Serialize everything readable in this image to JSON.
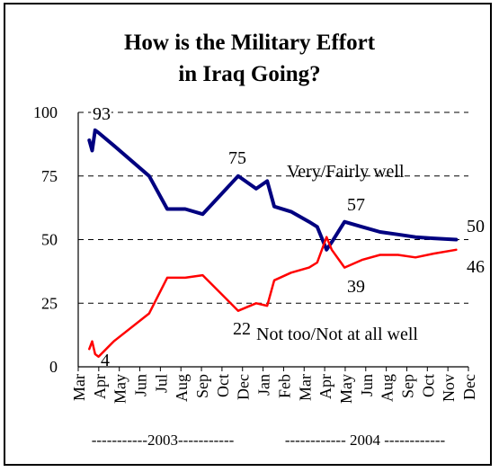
{
  "chart_data": {
    "type": "line",
    "title_lines": [
      "How is the Military Effort",
      "in Iraq Going?"
    ],
    "xlabel": "",
    "ylabel": "",
    "ylim": [
      0,
      100
    ],
    "y_ticks": [
      0,
      25,
      50,
      75,
      100
    ],
    "grid": "horizontal dashed",
    "month_ticks": [
      "Mar",
      "Apr",
      "May",
      "Jun",
      "Jul",
      "Aug",
      "Sep",
      "Oct",
      "Dec",
      "Jan",
      "Feb",
      "Mar",
      "Apr",
      "May",
      "Jun",
      "Aug",
      "Sep",
      "Oct",
      "Nov",
      "Dec"
    ],
    "year_labels": [
      "-----------2003-----------",
      "------------ 2004 ------------"
    ],
    "x": [
      "2003-03-20",
      "2003-03-25",
      "2003-03-30",
      "2003-04-05",
      "2003-05-01",
      "2003-07-01",
      "2003-08-01",
      "2003-09-01",
      "2003-10-01",
      "2003-12-01",
      "2004-01-01",
      "2004-01-20",
      "2004-02-01",
      "2004-03-01",
      "2004-04-01",
      "2004-04-15",
      "2004-05-01",
      "2004-05-10",
      "2004-06-01",
      "2004-07-01",
      "2004-08-01",
      "2004-09-01",
      "2004-10-01",
      "2004-11-01",
      "2004-12-10"
    ],
    "series": [
      {
        "name": "Very/Fairly well",
        "color": "#000080",
        "values": [
          89,
          85,
          93,
          92,
          87,
          75,
          62,
          62,
          60,
          75,
          70,
          73,
          63,
          61,
          57,
          55,
          46,
          49,
          57,
          55,
          53,
          52,
          51,
          50.5,
          50
        ]
      },
      {
        "name": "Not too/Not at all well",
        "color": "#ff0000",
        "values": [
          7,
          10,
          5,
          4,
          10,
          21,
          35,
          35,
          36,
          22,
          25,
          24,
          34,
          37,
          39,
          41,
          51,
          46,
          39,
          42,
          44,
          44,
          43,
          44.5,
          46
        ]
      }
    ],
    "annotations": [
      {
        "text": "93"
      },
      {
        "text": "75"
      },
      {
        "text": "57"
      },
      {
        "text": "50"
      },
      {
        "text": "4"
      },
      {
        "text": "22"
      },
      {
        "text": "39"
      },
      {
        "text": "46"
      },
      {
        "text": "Very/Fairly well"
      },
      {
        "text": "Not too/Not at all well"
      }
    ]
  }
}
